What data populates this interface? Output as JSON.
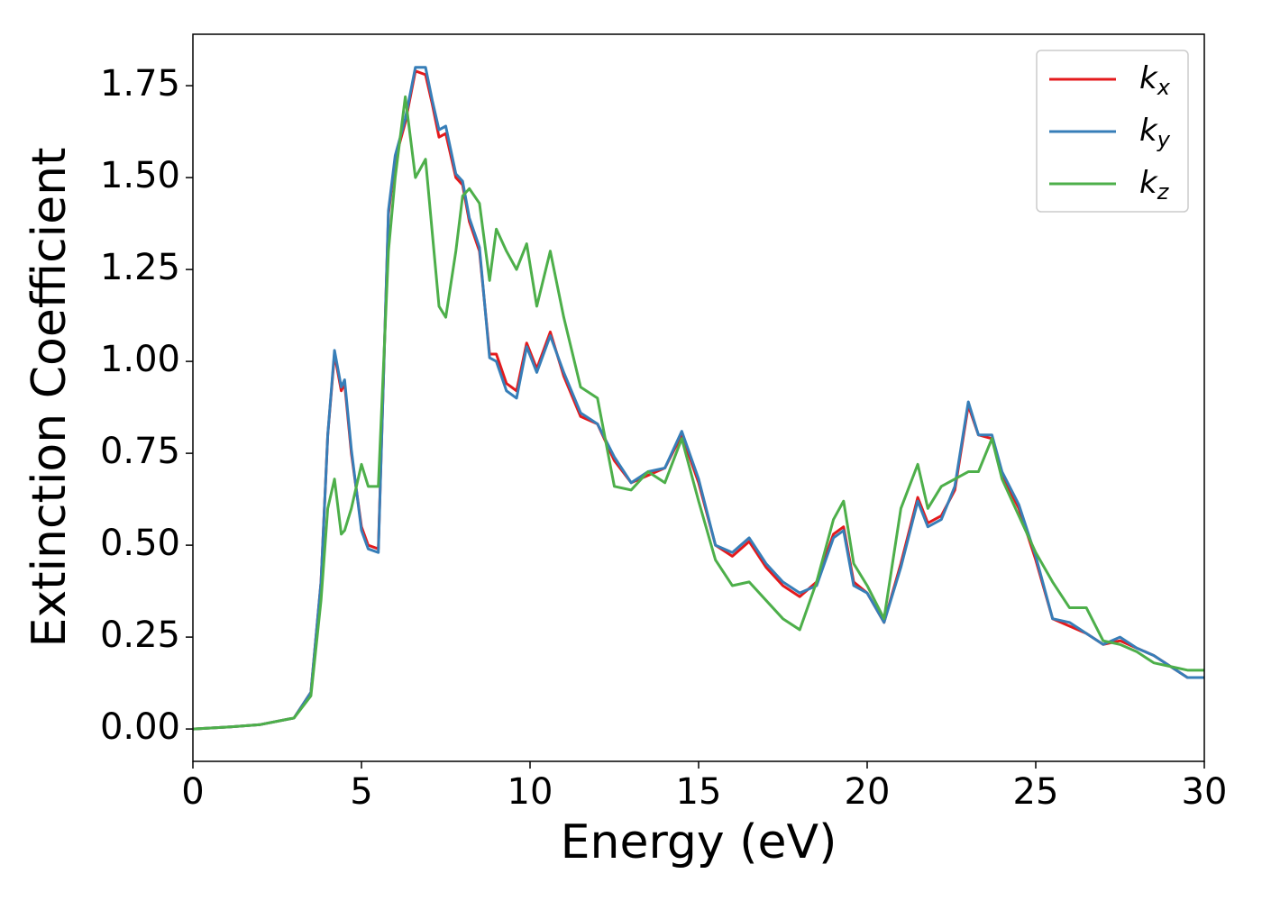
{
  "chart_data": {
    "type": "line",
    "xlabel": "Energy (eV)",
    "ylabel": "Extinction Coefficient",
    "x": [
      0,
      1,
      2,
      3,
      3.5,
      3.8,
      4.0,
      4.2,
      4.4,
      4.5,
      4.7,
      5.0,
      5.2,
      5.5,
      5.8,
      6.0,
      6.3,
      6.6,
      6.9,
      7.1,
      7.3,
      7.5,
      7.8,
      8.0,
      8.2,
      8.5,
      8.8,
      9.0,
      9.3,
      9.6,
      9.9,
      10.2,
      10.6,
      11.0,
      11.5,
      12.0,
      12.5,
      13.0,
      13.5,
      14.0,
      14.5,
      15.0,
      15.5,
      16.0,
      16.5,
      17.0,
      17.5,
      18.0,
      18.5,
      19.0,
      19.3,
      19.6,
      20.0,
      20.5,
      21.0,
      21.5,
      21.8,
      22.2,
      22.6,
      23.0,
      23.3,
      23.7,
      24.0,
      24.5,
      25.0,
      25.5,
      26.0,
      26.5,
      27.0,
      27.5,
      28.0,
      28.5,
      29.0,
      29.5,
      30
    ],
    "series": [
      {
        "name": "kx",
        "color": "#e41a1c",
        "values": [
          0,
          0.005,
          0.012,
          0.03,
          0.1,
          0.4,
          0.8,
          1.02,
          0.92,
          0.94,
          0.75,
          0.55,
          0.5,
          0.49,
          1.4,
          1.55,
          1.65,
          1.79,
          1.78,
          1.7,
          1.61,
          1.62,
          1.5,
          1.48,
          1.38,
          1.3,
          1.02,
          1.02,
          0.94,
          0.92,
          1.05,
          0.98,
          1.08,
          0.96,
          0.85,
          0.83,
          0.73,
          0.67,
          0.69,
          0.71,
          0.8,
          0.67,
          0.5,
          0.47,
          0.51,
          0.44,
          0.39,
          0.36,
          0.4,
          0.53,
          0.55,
          0.4,
          0.37,
          0.29,
          0.45,
          0.63,
          0.56,
          0.58,
          0.65,
          0.88,
          0.8,
          0.79,
          0.69,
          0.6,
          0.46,
          0.3,
          0.28,
          0.26,
          0.23,
          0.24,
          0.22,
          0.2,
          0.17,
          0.14,
          0.14
        ]
      },
      {
        "name": "ky",
        "color": "#377eb8",
        "values": [
          0,
          0.005,
          0.012,
          0.03,
          0.1,
          0.4,
          0.8,
          1.03,
          0.93,
          0.95,
          0.76,
          0.54,
          0.49,
          0.48,
          1.41,
          1.56,
          1.66,
          1.8,
          1.8,
          1.71,
          1.63,
          1.64,
          1.51,
          1.49,
          1.39,
          1.31,
          1.01,
          1.0,
          0.92,
          0.9,
          1.04,
          0.97,
          1.07,
          0.97,
          0.86,
          0.83,
          0.74,
          0.67,
          0.7,
          0.71,
          0.81,
          0.68,
          0.5,
          0.48,
          0.52,
          0.45,
          0.4,
          0.37,
          0.39,
          0.52,
          0.54,
          0.39,
          0.37,
          0.29,
          0.44,
          0.62,
          0.55,
          0.57,
          0.66,
          0.89,
          0.8,
          0.8,
          0.7,
          0.61,
          0.47,
          0.3,
          0.29,
          0.26,
          0.23,
          0.25,
          0.22,
          0.2,
          0.17,
          0.14,
          0.14
        ]
      },
      {
        "name": "kz",
        "color": "#4daf4a",
        "values": [
          0,
          0.005,
          0.012,
          0.03,
          0.09,
          0.35,
          0.6,
          0.68,
          0.53,
          0.54,
          0.6,
          0.72,
          0.66,
          0.66,
          1.3,
          1.5,
          1.72,
          1.5,
          1.55,
          1.35,
          1.15,
          1.12,
          1.3,
          1.45,
          1.47,
          1.43,
          1.22,
          1.36,
          1.3,
          1.25,
          1.32,
          1.15,
          1.3,
          1.12,
          0.93,
          0.9,
          0.66,
          0.65,
          0.7,
          0.67,
          0.79,
          0.62,
          0.46,
          0.39,
          0.4,
          0.35,
          0.3,
          0.27,
          0.4,
          0.57,
          0.62,
          0.45,
          0.39,
          0.3,
          0.6,
          0.72,
          0.6,
          0.66,
          0.68,
          0.7,
          0.7,
          0.79,
          0.68,
          0.58,
          0.48,
          0.4,
          0.33,
          0.33,
          0.24,
          0.23,
          0.21,
          0.18,
          0.17,
          0.16,
          0.16
        ]
      }
    ],
    "xlim": [
      0,
      30
    ],
    "xticks": [
      0,
      5,
      10,
      15,
      20,
      25,
      30
    ],
    "ylim": [
      -0.088,
      1.89
    ],
    "yticks": [
      {
        "value": 0,
        "label": "0.00"
      },
      {
        "value": 0.25,
        "label": "0.25"
      },
      {
        "value": 0.5,
        "label": "0.50"
      },
      {
        "value": 0.75,
        "label": "0.75"
      },
      {
        "value": 1,
        "label": "1.00"
      },
      {
        "value": 1.25,
        "label": "1.25"
      },
      {
        "value": 1.5,
        "label": "1.50"
      },
      {
        "value": 1.75,
        "label": "1.75"
      }
    ],
    "legend": "upper right"
  }
}
